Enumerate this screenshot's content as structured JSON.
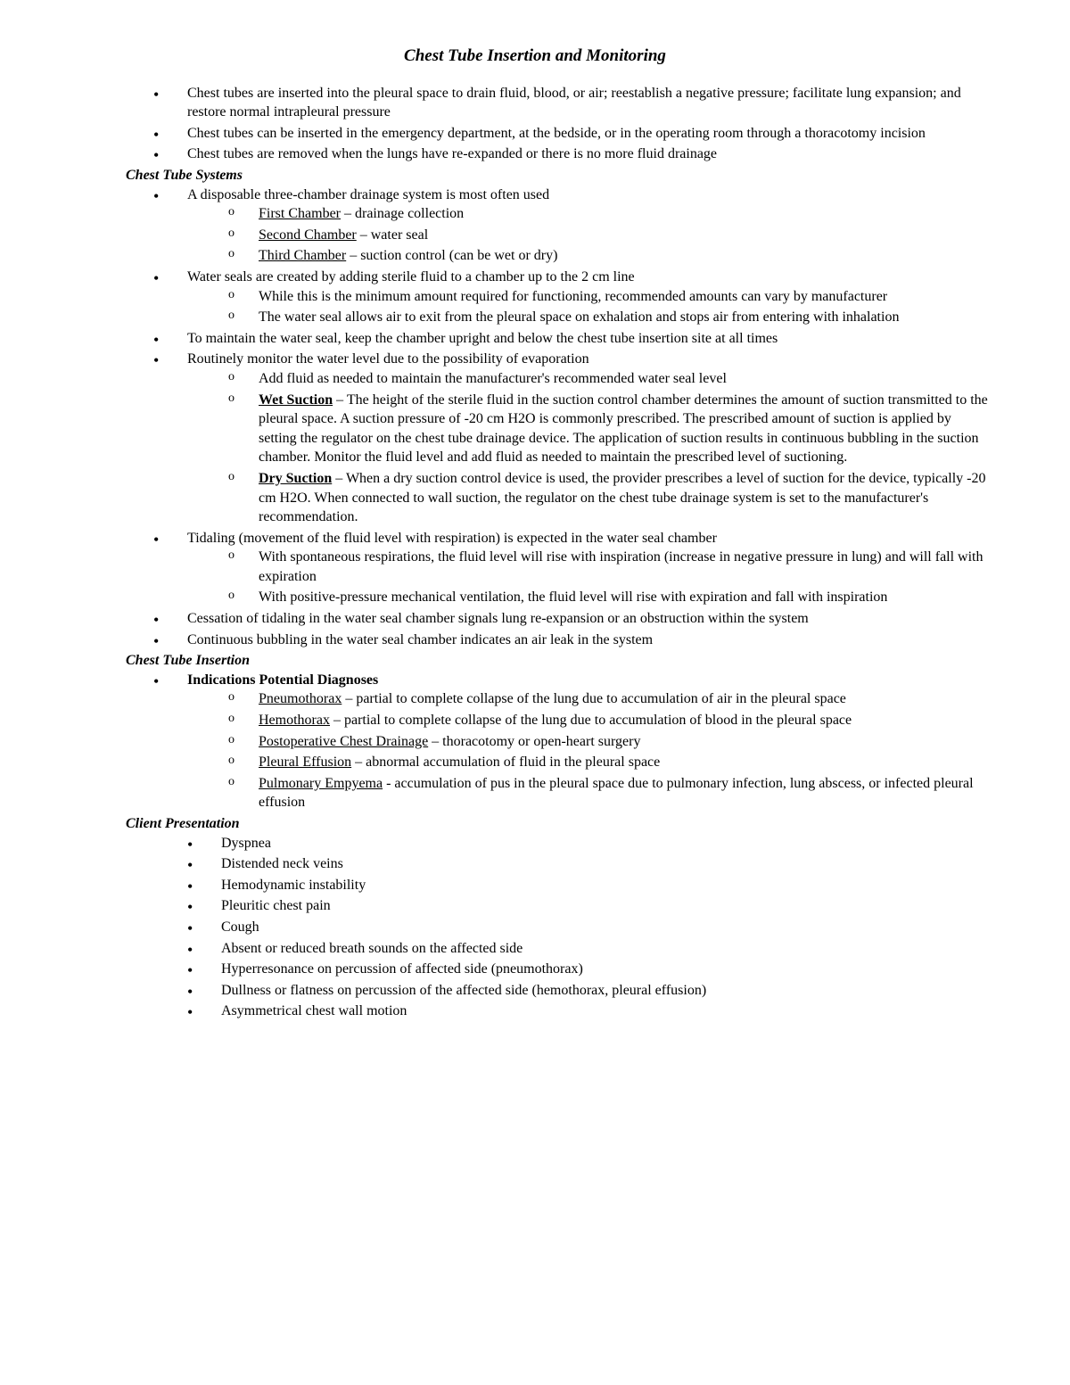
{
  "title": "Chest Tube Insertion and Monitoring",
  "intro": {
    "b1": "Chest tubes are inserted into the pleural space to drain fluid, blood, or air; reestablish a negative pressure; facilitate lung expansion; and restore normal intrapleural pressure",
    "b2": "Chest tubes can be inserted in the emergency department, at the bedside, or in the operating room through a thoracotomy incision",
    "b3": "Chest tubes are removed when the lungs have re-expanded or there is no more fluid drainage"
  },
  "systems": {
    "header": "Chest Tube Systems",
    "b1": "A disposable three-chamber drainage system is most often used",
    "b1s1_term": "First Chamber",
    "b1s1_rest": " – drainage collection",
    "b1s2_term": "Second Chamber",
    "b1s2_rest": " – water seal",
    "b1s3_term": "Third Chamber",
    "b1s3_rest": " – suction control (can be wet or dry)",
    "b2": "Water seals are created by adding sterile fluid to a chamber up to the 2 cm line",
    "b2s1": "While this is the minimum amount required for functioning, recommended amounts can vary by manufacturer",
    "b2s2": "The water seal allows air to exit from the pleural space on exhalation and stops air from entering with inhalation",
    "b3": "To maintain the water seal, keep the chamber upright and below the chest tube insertion site at all times",
    "b4": "Routinely monitor the water level due to the possibility of evaporation",
    "b4s1": "Add fluid as needed to maintain the manufacturer's recommended water seal level",
    "b4s2_term": "Wet Suction",
    "b4s2_rest": " – The height of the sterile fluid in the suction control chamber determines the amount of suction transmitted to the pleural space. A suction pressure of -20 cm H2O is commonly prescribed. The prescribed amount of suction is applied by setting the regulator on the chest tube drainage device. The application of suction results in continuous bubbling in the suction chamber. Monitor the fluid level and add fluid as needed to maintain the prescribed level of suctioning.",
    "b4s3_term": "Dry Suction",
    "b4s3_rest": " – When a dry suction control device is used, the provider prescribes a level of suction for the device, typically -20 cm H2O. When connected to wall suction, the regulator on the chest tube drainage system is set to the manufacturer's recommendation.",
    "b5": "Tidaling (movement of the fluid level with respiration) is expected in the water seal chamber",
    "b5s1": "With spontaneous respirations, the fluid level will rise with inspiration (increase in negative pressure in lung) and will fall with expiration",
    "b5s2": "With positive-pressure mechanical ventilation, the fluid level will rise with expiration and fall with inspiration",
    "b6": "Cessation of tidaling in the water seal chamber signals lung re-expansion or an obstruction within the system",
    "b7": "Continuous bubbling in the water seal chamber indicates an air leak in the system"
  },
  "insertion": {
    "header": "Chest Tube Insertion",
    "b1": "Indications Potential Diagnoses",
    "b1s1_term": "Pneumothorax",
    "b1s1_rest": " – partial to complete collapse of the lung due to accumulation of air in the pleural space",
    "b1s2_term": "Hemothorax",
    "b1s2_rest": " – partial to complete collapse of the lung due to accumulation of blood in the pleural space",
    "b1s3_term": "Postoperative Chest Drainage",
    "b1s3_rest": " – thoracotomy or open-heart surgery",
    "b1s4_term": "Pleural Effusion",
    "b1s4_rest": " – abnormal accumulation of fluid in the pleural space",
    "b1s5_term": "Pulmonary Empyema",
    "b1s5_rest": " - accumulation of pus in the pleural space due to pulmonary infection, lung abscess, or infected pleural effusion"
  },
  "presentation": {
    "header": "Client Presentation",
    "p1": "Dyspnea",
    "p2": "Distended neck veins",
    "p3": "Hemodynamic instability",
    "p4": "Pleuritic chest pain",
    "p5": "Cough",
    "p6": "Absent or reduced breath sounds on the affected side",
    "p7": "Hyperresonance on percussion of affected side (pneumothorax)",
    "p8": "Dullness or flatness on percussion of the affected side (hemothorax, pleural effusion)",
    "p9": "Asymmetrical chest wall motion"
  }
}
